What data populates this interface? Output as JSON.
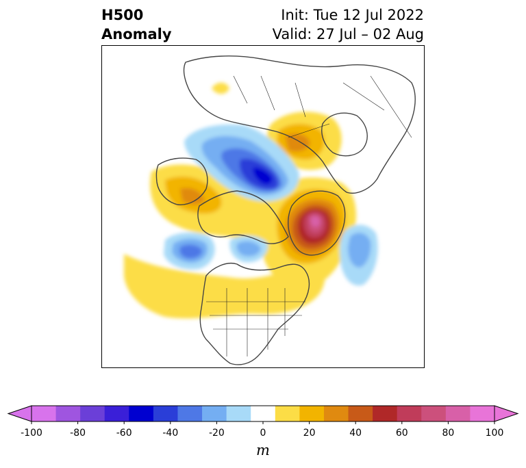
{
  "title": {
    "left_line1": "H500",
    "left_line2": "Anomaly",
    "right_line1": "Init: Tue 12 Jul 2022",
    "right_line2": "Valid: 27 Jul – 02 Aug"
  },
  "colorbar": {
    "unit": "m",
    "min": -100,
    "max": 100,
    "extend": "both",
    "levels": [
      -100,
      -90,
      -80,
      -70,
      -60,
      -50,
      -40,
      -30,
      -20,
      -10,
      10,
      20,
      30,
      40,
      50,
      60,
      70,
      80,
      90,
      100
    ],
    "colors": [
      "#d873ec",
      "#9f55e0",
      "#6b3fd8",
      "#3a1fd8",
      "#0000d0",
      "#2a3ed8",
      "#4e78e6",
      "#74aef2",
      "#a8daf8",
      "#ffffff",
      "#fcdd46",
      "#f2b400",
      "#e08a10",
      "#c85a18",
      "#b02828",
      "#c03c5a",
      "#cc507c",
      "#d860a8",
      "#e874d8"
    ],
    "tick_labels": [
      "-100",
      "-80",
      "-60",
      "-40",
      "-20",
      "0",
      "20",
      "40",
      "60",
      "80",
      "100"
    ],
    "tick_values": [
      -100,
      -80,
      -60,
      -40,
      -20,
      0,
      20,
      40,
      60,
      80,
      100
    ]
  },
  "map": {
    "projection": "polar-stereographic",
    "region": "North America / Arctic",
    "features": [
      {
        "name": "negative anomaly over Arctic (north of Canada)",
        "min_value": -60,
        "color_level": "blue"
      },
      {
        "name": "positive anomaly over Greenland",
        "max_value": 90,
        "color_level": "magenta"
      },
      {
        "name": "positive anomaly over Eastern Siberia / Arctic Ocean",
        "max_value": 40
      },
      {
        "name": "positive anomaly over Alaska",
        "max_value": 40
      },
      {
        "name": "negative anomaly over Northeast Pacific",
        "min_value": -40
      },
      {
        "name": "negative anomaly over western North Atlantic",
        "min_value": -30
      },
      {
        "name": "positive anomaly over continental US",
        "max_value": 20
      }
    ]
  }
}
